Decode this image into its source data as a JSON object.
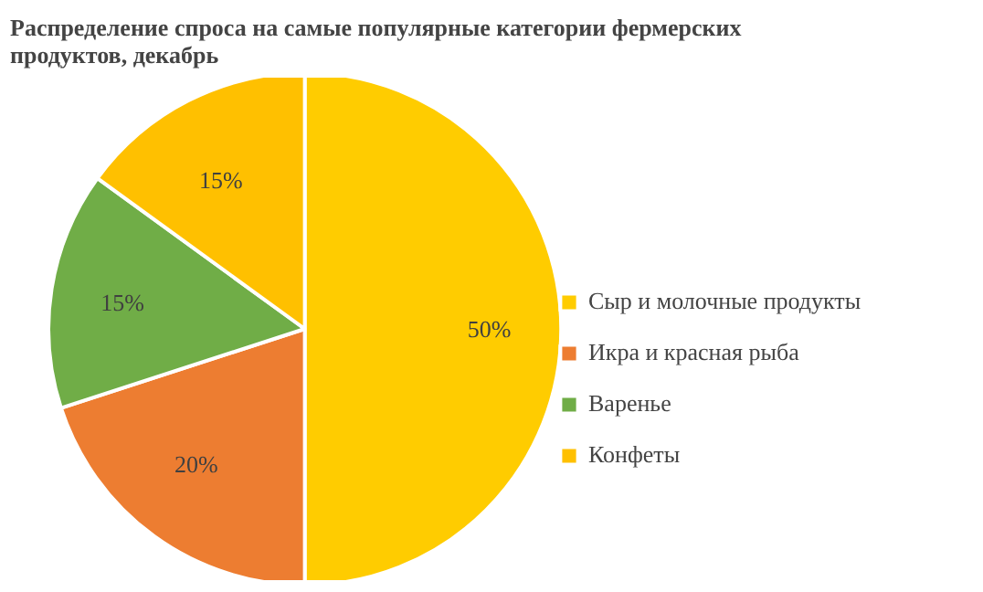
{
  "chart_data": {
    "type": "pie",
    "title": "Распределение спроса на самые популярные категории фермерских продуктов, декабрь",
    "categories": [
      "Сыр и молочные продукты",
      "Икра и красная рыба",
      "Варенье",
      "Конфеты"
    ],
    "values": [
      50,
      20,
      15,
      15
    ],
    "colors": [
      "#ffcc00",
      "#ed7d31",
      "#70ad47",
      "#ffc000"
    ],
    "value_labels": [
      "50%",
      "20%",
      "15%",
      "15%"
    ],
    "legend": "right"
  }
}
